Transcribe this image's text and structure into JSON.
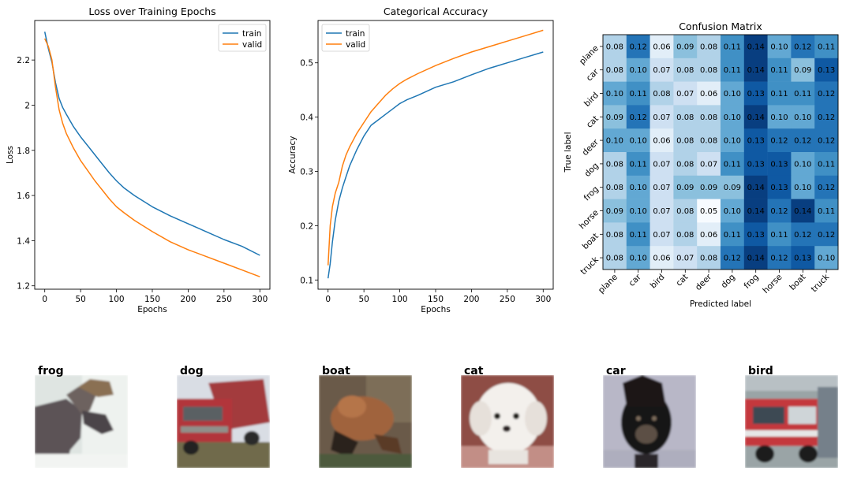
{
  "chart_data": [
    {
      "type": "line",
      "title": "Loss over Training Epochs",
      "xlabel": "Epochs",
      "ylabel": "Loss",
      "xlim": [
        -14,
        314
      ],
      "ylim": [
        1.185,
        2.375
      ],
      "xticks": [
        0,
        50,
        100,
        150,
        200,
        250,
        300
      ],
      "yticks": [
        1.2,
        1.4,
        1.6,
        1.8,
        2.0,
        2.2
      ],
      "legend": "top-right",
      "grid": false,
      "series": [
        {
          "name": "train",
          "color": "#1f77b4",
          "x": [
            0,
            5,
            10,
            15,
            20,
            25,
            30,
            40,
            50,
            60,
            70,
            80,
            90,
            100,
            110,
            125,
            150,
            175,
            200,
            225,
            250,
            275,
            300
          ],
          "y": [
            2.325,
            2.25,
            2.19,
            2.1,
            2.03,
            1.99,
            1.96,
            1.905,
            1.86,
            1.82,
            1.78,
            1.74,
            1.7,
            1.665,
            1.635,
            1.6,
            1.55,
            1.51,
            1.475,
            1.44,
            1.405,
            1.375,
            1.335
          ]
        },
        {
          "name": "valid",
          "color": "#ff7f0e",
          "x": [
            0,
            5,
            10,
            15,
            20,
            25,
            30,
            40,
            50,
            60,
            70,
            80,
            90,
            100,
            110,
            125,
            150,
            175,
            200,
            225,
            250,
            275,
            300
          ],
          "y": [
            2.295,
            2.26,
            2.2,
            2.08,
            1.98,
            1.92,
            1.875,
            1.81,
            1.755,
            1.71,
            1.665,
            1.625,
            1.585,
            1.55,
            1.525,
            1.49,
            1.44,
            1.395,
            1.36,
            1.33,
            1.3,
            1.27,
            1.24
          ]
        }
      ]
    },
    {
      "type": "line",
      "title": "Categorical Accuracy",
      "xlabel": "Epochs",
      "ylabel": "Accuracy",
      "xlim": [
        -14,
        314
      ],
      "ylim": [
        0.083,
        0.578
      ],
      "xticks": [
        0,
        50,
        100,
        150,
        200,
        250,
        300
      ],
      "yticks": [
        0.1,
        0.2,
        0.3,
        0.4,
        0.5
      ],
      "legend": "top-left",
      "grid": false,
      "series": [
        {
          "name": "train",
          "color": "#1f77b4",
          "x": [
            0,
            3,
            6,
            10,
            15,
            20,
            25,
            30,
            40,
            50,
            60,
            70,
            80,
            90,
            100,
            110,
            125,
            150,
            175,
            200,
            225,
            250,
            275,
            300
          ],
          "y": [
            0.103,
            0.13,
            0.17,
            0.21,
            0.245,
            0.27,
            0.29,
            0.31,
            0.34,
            0.365,
            0.385,
            0.395,
            0.405,
            0.415,
            0.425,
            0.432,
            0.44,
            0.455,
            0.465,
            0.478,
            0.49,
            0.5,
            0.51,
            0.52
          ]
        },
        {
          "name": "valid",
          "color": "#ff7f0e",
          "x": [
            0,
            3,
            6,
            10,
            15,
            20,
            25,
            30,
            40,
            50,
            60,
            70,
            80,
            90,
            100,
            110,
            125,
            150,
            175,
            200,
            225,
            250,
            275,
            300
          ],
          "y": [
            0.127,
            0.2,
            0.235,
            0.26,
            0.28,
            0.31,
            0.33,
            0.345,
            0.37,
            0.39,
            0.41,
            0.425,
            0.44,
            0.452,
            0.462,
            0.47,
            0.48,
            0.495,
            0.508,
            0.52,
            0.53,
            0.54,
            0.55,
            0.56
          ]
        }
      ]
    },
    {
      "type": "heatmap",
      "title": "Confusion Matrix",
      "xlabel": "Predicted label",
      "ylabel": "True label",
      "labels": [
        "plane",
        "car",
        "bird",
        "cat",
        "deer",
        "dog",
        "frog",
        "horse",
        "boat",
        "truck"
      ],
      "values": [
        [
          0.08,
          0.12,
          0.06,
          0.09,
          0.08,
          0.11,
          0.14,
          0.1,
          0.12,
          0.11
        ],
        [
          0.08,
          0.1,
          0.07,
          0.08,
          0.08,
          0.11,
          0.14,
          0.11,
          0.09,
          0.13
        ],
        [
          0.1,
          0.11,
          0.08,
          0.07,
          0.06,
          0.1,
          0.13,
          0.11,
          0.11,
          0.12
        ],
        [
          0.09,
          0.12,
          0.07,
          0.08,
          0.08,
          0.1,
          0.14,
          0.1,
          0.1,
          0.12
        ],
        [
          0.1,
          0.1,
          0.06,
          0.08,
          0.08,
          0.1,
          0.13,
          0.12,
          0.12,
          0.12
        ],
        [
          0.08,
          0.11,
          0.07,
          0.08,
          0.07,
          0.11,
          0.13,
          0.13,
          0.1,
          0.11
        ],
        [
          0.08,
          0.1,
          0.07,
          0.09,
          0.09,
          0.09,
          0.14,
          0.13,
          0.1,
          0.12
        ],
        [
          0.09,
          0.1,
          0.07,
          0.08,
          0.05,
          0.1,
          0.14,
          0.12,
          0.14,
          0.11
        ],
        [
          0.08,
          0.11,
          0.07,
          0.08,
          0.06,
          0.11,
          0.13,
          0.11,
          0.12,
          0.12
        ],
        [
          0.08,
          0.1,
          0.06,
          0.07,
          0.08,
          0.12,
          0.14,
          0.12,
          0.13,
          0.1
        ]
      ],
      "colormap": "Blues",
      "vmin": 0.05,
      "vmax": 0.145
    }
  ],
  "samples": [
    {
      "label": "frog",
      "scene": "moose"
    },
    {
      "label": "dog",
      "scene": "truck"
    },
    {
      "label": "boat",
      "scene": "frog"
    },
    {
      "label": "cat",
      "scene": "white-dog"
    },
    {
      "label": "car",
      "scene": "black-dog"
    },
    {
      "label": "bird",
      "scene": "fire-truck"
    }
  ]
}
